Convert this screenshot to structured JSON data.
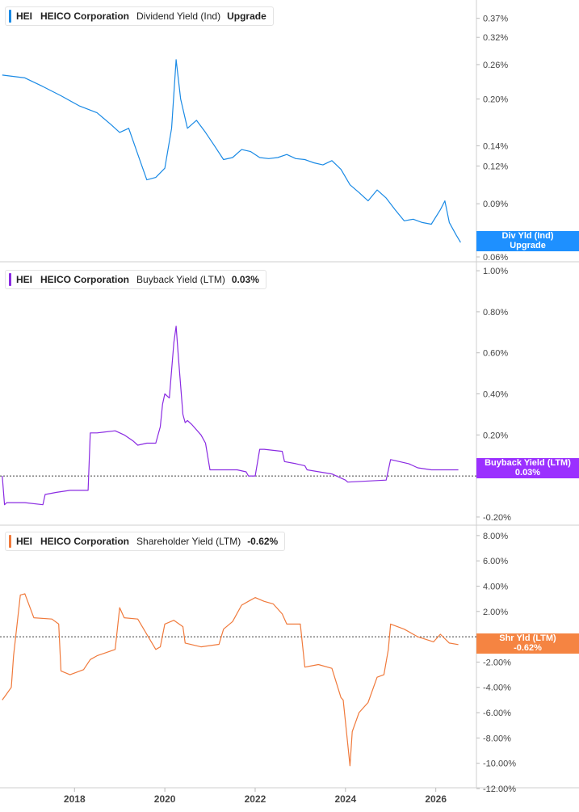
{
  "legends": [
    {
      "ticker": "HEI",
      "name": "HEICO Corporation",
      "metric": "Dividend Yield (Ind)",
      "value": "Upgrade",
      "color": "#1a8ae5"
    },
    {
      "ticker": "HEI",
      "name": "HEICO Corporation",
      "metric": "Buyback Yield (LTM)",
      "value": "0.03%",
      "color": "#8a2be2"
    },
    {
      "ticker": "HEI",
      "name": "HEICO Corporation",
      "metric": "Shareholder Yield (LTM)",
      "value": "-0.62%",
      "color": "#f07a3c"
    }
  ],
  "tags": [
    {
      "line1": "Div Yld (Ind)",
      "line2": "Upgrade",
      "color": "#1e90ff"
    },
    {
      "line1": "Buyback Yield (LTM)",
      "line2": "0.03%",
      "color": "#9b30ff"
    },
    {
      "line1": "Shr Yld (LTM)",
      "line2": "-0.62%",
      "color": "#f58442"
    }
  ],
  "chart_data": [
    {
      "type": "line",
      "title": "Dividend Yield (Ind)",
      "scale": "log",
      "ylim": [
        0.06,
        0.4
      ],
      "yticks": [
        "0.37%",
        "0.32%",
        "0.26%",
        "0.20%",
        "0.14%",
        "0.12%",
        "0.09%",
        "0.06%"
      ],
      "ytick_values": [
        0.37,
        0.32,
        0.26,
        0.2,
        0.14,
        0.12,
        0.09,
        0.06
      ],
      "color": "#1a8ae5",
      "series": [
        {
          "x": [
            2016.4,
            2016.9,
            2017.3,
            2017.7,
            2018.1,
            2018.5,
            2018.8,
            2019.0,
            2019.2,
            2019.45,
            2019.6,
            2019.8,
            2020.0,
            2020.15,
            2020.25,
            2020.35,
            2020.5,
            2020.7,
            2020.9,
            2021.1,
            2021.3,
            2021.5,
            2021.7,
            2021.9,
            2022.1,
            2022.3,
            2022.5,
            2022.7,
            2022.9,
            2023.1,
            2023.3,
            2023.5,
            2023.7,
            2023.9,
            2024.1,
            2024.3,
            2024.5,
            2024.7,
            2024.9,
            2025.1,
            2025.3,
            2025.5,
            2025.7,
            2025.9,
            2026.1,
            2026.2,
            2026.3,
            2026.45,
            2026.55
          ],
          "y": [
            0.24,
            0.235,
            0.22,
            0.205,
            0.19,
            0.18,
            0.165,
            0.155,
            0.16,
            0.125,
            0.108,
            0.11,
            0.118,
            0.16,
            0.27,
            0.2,
            0.16,
            0.17,
            0.155,
            0.14,
            0.126,
            0.128,
            0.136,
            0.134,
            0.128,
            0.127,
            0.128,
            0.131,
            0.127,
            0.126,
            0.123,
            0.121,
            0.125,
            0.117,
            0.104,
            0.098,
            0.092,
            0.1,
            0.094,
            0.086,
            0.079,
            0.08,
            0.078,
            0.077,
            0.086,
            0.092,
            0.078,
            0.071,
            0.067
          ]
        }
      ]
    },
    {
      "type": "line",
      "title": "Buyback Yield (LTM)",
      "ylim": [
        -0.22,
        1.02
      ],
      "yticks": [
        "1.00%",
        "0.80%",
        "0.60%",
        "0.40%",
        "0.20%",
        "-0.20%"
      ],
      "ytick_values": [
        1.0,
        0.8,
        0.6,
        0.4,
        0.2,
        -0.2
      ],
      "zero_line": true,
      "color": "#8a2be2",
      "series": [
        {
          "x": [
            2016.4,
            2016.45,
            2016.5,
            2016.9,
            2017.3,
            2017.35,
            2017.6,
            2017.9,
            2018.3,
            2018.35,
            2018.5,
            2018.9,
            2019.1,
            2019.3,
            2019.4,
            2019.6,
            2019.8,
            2019.9,
            2019.95,
            2020.0,
            2020.1,
            2020.2,
            2020.25,
            2020.3,
            2020.4,
            2020.45,
            2020.5,
            2020.6,
            2020.8,
            2020.9,
            2021.0,
            2021.1,
            2021.6,
            2021.8,
            2021.85,
            2022.0,
            2022.1,
            2022.2,
            2022.6,
            2022.65,
            2022.9,
            2023.1,
            2023.15,
            2023.7,
            2024.0,
            2024.05,
            2024.9,
            2025.0,
            2025.4,
            2025.6,
            2025.9,
            2026.0,
            2026.5
          ],
          "y": [
            0.0,
            -0.14,
            -0.13,
            -0.13,
            -0.14,
            -0.09,
            -0.08,
            -0.07,
            -0.07,
            0.21,
            0.21,
            0.22,
            0.2,
            0.17,
            0.15,
            0.16,
            0.16,
            0.24,
            0.35,
            0.4,
            0.38,
            0.65,
            0.73,
            0.58,
            0.3,
            0.26,
            0.27,
            0.25,
            0.2,
            0.16,
            0.03,
            0.03,
            0.03,
            0.02,
            0.0,
            0.0,
            0.13,
            0.13,
            0.12,
            0.07,
            0.06,
            0.05,
            0.03,
            0.01,
            -0.02,
            -0.03,
            -0.02,
            0.08,
            0.06,
            0.04,
            0.03,
            0.03,
            0.03
          ]
        }
      ]
    },
    {
      "type": "line",
      "title": "Shareholder Yield (LTM)",
      "ylim": [
        -12.0,
        8.5
      ],
      "yticks": [
        "8.00%",
        "6.00%",
        "4.00%",
        "2.00%",
        "-2.00%",
        "-4.00%",
        "-6.00%",
        "-8.00%",
        "-10.00%",
        "-12.00%"
      ],
      "ytick_values": [
        8,
        6,
        4,
        2,
        -2,
        -4,
        -6,
        -8,
        -10,
        -12
      ],
      "zero_line": true,
      "color": "#f07a3c",
      "series": [
        {
          "x": [
            2016.4,
            2016.5,
            2016.6,
            2016.65,
            2016.8,
            2016.9,
            2017.1,
            2017.5,
            2017.65,
            2017.7,
            2017.9,
            2018.2,
            2018.35,
            2018.5,
            2018.9,
            2019.0,
            2019.1,
            2019.4,
            2019.8,
            2019.9,
            2020.0,
            2020.2,
            2020.4,
            2020.45,
            2020.8,
            2021.2,
            2021.3,
            2021.5,
            2021.7,
            2021.9,
            2022.0,
            2022.2,
            2022.4,
            2022.6,
            2022.7,
            2023.0,
            2023.1,
            2023.4,
            2023.7,
            2023.9,
            2023.95,
            2024.1,
            2024.15,
            2024.3,
            2024.5,
            2024.7,
            2024.85,
            2024.95,
            2025.0,
            2025.3,
            2025.6,
            2025.95,
            2026.1,
            2026.3,
            2026.5
          ],
          "y": [
            -5.0,
            -4.5,
            -4.0,
            -1.5,
            3.3,
            3.4,
            1.5,
            1.4,
            1.0,
            -2.7,
            -3.0,
            -2.6,
            -1.8,
            -1.5,
            -1.0,
            2.3,
            1.5,
            1.4,
            -1.0,
            -0.8,
            1.0,
            1.3,
            0.8,
            -0.5,
            -0.8,
            -0.6,
            0.6,
            1.2,
            2.5,
            2.9,
            3.1,
            2.8,
            2.6,
            1.8,
            1.0,
            1.0,
            -2.4,
            -2.2,
            -2.5,
            -4.8,
            -5.0,
            -10.2,
            -7.5,
            -6.0,
            -5.2,
            -3.2,
            -3.0,
            -1.0,
            1.0,
            0.6,
            0.0,
            -0.4,
            0.2,
            -0.5,
            -0.62
          ]
        }
      ]
    }
  ],
  "x_axis": {
    "ticks": [
      "2018",
      "2020",
      "2022",
      "2024",
      "2026"
    ],
    "tick_values": [
      2018,
      2020,
      2022,
      2024,
      2026
    ],
    "xlim": [
      2016.35,
      2026.9
    ]
  }
}
